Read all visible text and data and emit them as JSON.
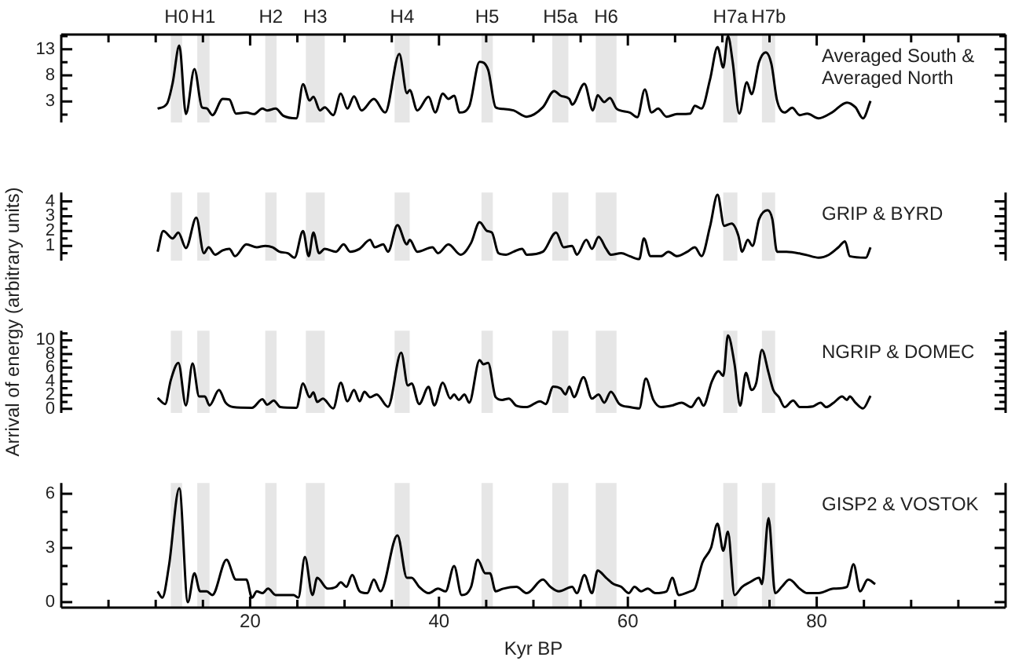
{
  "chart_data": [
    {
      "type": "line",
      "ylabel": "Arrival of energy (arbitrary units)",
      "xlim": [
        0,
        100
      ],
      "xticks": [
        {
          "value": 5,
          "label": null
        },
        {
          "value": 10,
          "label": null
        },
        {
          "value": 15,
          "label": null
        },
        20,
        {
          "value": 25,
          "label": null
        },
        {
          "value": 30,
          "label": null
        },
        {
          "value": 35,
          "label": null
        },
        40,
        {
          "value": 45,
          "label": null
        },
        {
          "value": 50,
          "label": null
        },
        {
          "value": 55,
          "label": null
        },
        60,
        {
          "value": 65,
          "label": null
        },
        {
          "value": 70,
          "label": null
        },
        {
          "value": 75,
          "label": null
        },
        80,
        {
          "value": 85,
          "label": null
        },
        {
          "value": 90,
          "label": null
        },
        {
          "value": 95,
          "label": null
        }
      ],
      "ylim": [
        -1,
        15.8
      ],
      "yticks": [
        {
          "value": 0.5,
          "label": null
        },
        3,
        {
          "value": 5.5,
          "label": null
        },
        8,
        {
          "value": 10.5,
          "label": null
        },
        13,
        {
          "value": 15.5,
          "label": null
        }
      ],
      "tick_labels": "y",
      "bands": [
        {
          "axis": "x",
          "from": 11.6,
          "to": 12.8,
          "label": "H0",
          "color": "#e6e6e6"
        },
        {
          "axis": "x",
          "from": 14.4,
          "to": 15.7,
          "label": "H1",
          "color": "#e6e6e6"
        },
        {
          "axis": "x",
          "from": 21.6,
          "to": 22.8,
          "label": "H2",
          "color": "#e6e6e6"
        },
        {
          "axis": "x",
          "from": 25.9,
          "to": 27.9,
          "label": "H3",
          "color": "#e6e6e6"
        },
        {
          "axis": "x",
          "from": 35.3,
          "to": 36.9,
          "label": "H4",
          "color": "#e6e6e6"
        },
        {
          "axis": "x",
          "from": 44.5,
          "to": 45.7,
          "label": "H5",
          "color": "#e6e6e6"
        },
        {
          "axis": "x",
          "from": 52,
          "to": 53.7,
          "label": "H5a",
          "color": "#e6e6e6"
        },
        {
          "axis": "x",
          "from": 56.6,
          "to": 58.8,
          "label": "H6",
          "color": "#e6e6e6"
        },
        {
          "axis": "x",
          "from": 70.1,
          "to": 71.6,
          "label": "H7a",
          "color": "#e6e6e6"
        },
        {
          "axis": "x",
          "from": 74.2,
          "to": 75.6,
          "label": "H7b",
          "color": "#e6e6e6"
        }
      ],
      "series": [
        {
          "name": "Averaged South & Averaged North",
          "color": "#000000",
          "x": [
            10.2,
            11.2,
            11.8,
            12.5,
            13.2,
            14.1,
            14.9,
            15.4,
            16,
            17.1,
            17.8,
            18.5,
            19.6,
            20.4,
            21.3,
            21.8,
            22.7,
            23.5,
            24.9,
            25.6,
            26.3,
            26.7,
            27.4,
            27.9,
            28.8,
            29.6,
            30.3,
            31,
            31.8,
            33.1,
            34.3,
            35.8,
            36.6,
            36.9,
            37.7,
            38.9,
            39.6,
            40.4,
            41,
            41.6,
            42.2,
            43.2,
            44.3,
            45.2,
            46,
            46.8,
            47.9,
            49.3,
            51,
            52.2,
            52.9,
            53.8,
            54.1,
            55.4,
            56.3,
            56.8,
            57.5,
            58.1,
            58.8,
            60.2,
            61,
            61.8,
            62.5,
            63.2,
            64.1,
            65.2,
            66.6,
            67.1,
            67.8,
            68.7,
            69.5,
            70.1,
            70.6,
            71.1,
            71.8,
            72.6,
            73.1,
            73.9,
            74.6,
            75.2,
            75.8,
            76.6,
            77.4,
            78.2,
            79,
            80.2,
            81.6,
            83.2,
            84.1,
            84.9,
            85.7
          ],
          "values": [
            1.65,
            2.6,
            6.6,
            13.7,
            0.6,
            9.2,
            1.9,
            1.7,
            0.4,
            3.5,
            3.4,
            0.7,
            0.9,
            0.6,
            1.65,
            1.3,
            1.65,
            0.3,
            -0.2,
            6.3,
            3.2,
            3.9,
            1.3,
            1.9,
            0.4,
            4.5,
            1.65,
            4.0,
            1.3,
            3.5,
            0.9,
            12.1,
            4.6,
            5.2,
            1.3,
            3.9,
            0.9,
            4.5,
            3.5,
            4.1,
            0.9,
            2.1,
            10.6,
            9.1,
            1.9,
            1.6,
            1.3,
            0.1,
            1.9,
            5.0,
            4.1,
            3.5,
            2.4,
            6.4,
            1.3,
            4.2,
            2.9,
            3.7,
            1.65,
            0.9,
            0,
            5.3,
            0.9,
            1.65,
            0.1,
            0.6,
            0.7,
            2.2,
            1.65,
            7.2,
            13.4,
            9.5,
            15.5,
            10.6,
            0.7,
            6.7,
            4.4,
            10.6,
            12.4,
            10.2,
            3.2,
            0.9,
            1.8,
            0.4,
            0.7,
            -0.2,
            0.9,
            2.8,
            1.9,
            -0.2,
            3.1
          ]
        }
      ]
    },
    {
      "type": "line",
      "xlim": [
        0,
        100
      ],
      "ylim": [
        0,
        4.6
      ],
      "yticks": [
        {
          "value": 0.5,
          "label": null
        },
        1,
        {
          "value": 1.5,
          "label": null
        },
        2,
        {
          "value": 2.5,
          "label": null
        },
        3,
        {
          "value": 3.5,
          "label": null
        },
        4
      ],
      "tick_labels": "y",
      "bands": [
        {
          "axis": "x",
          "from": 11.6,
          "to": 12.8,
          "color": "#e6e6e6"
        },
        {
          "axis": "x",
          "from": 14.4,
          "to": 15.7,
          "color": "#e6e6e6"
        },
        {
          "axis": "x",
          "from": 21.6,
          "to": 22.8,
          "color": "#e6e6e6"
        },
        {
          "axis": "x",
          "from": 25.9,
          "to": 27.9,
          "color": "#e6e6e6"
        },
        {
          "axis": "x",
          "from": 35.3,
          "to": 36.9,
          "color": "#e6e6e6"
        },
        {
          "axis": "x",
          "from": 44.5,
          "to": 45.7,
          "color": "#e6e6e6"
        },
        {
          "axis": "x",
          "from": 52,
          "to": 53.7,
          "color": "#e6e6e6"
        },
        {
          "axis": "x",
          "from": 56.6,
          "to": 58.8,
          "color": "#e6e6e6"
        },
        {
          "axis": "x",
          "from": 70.1,
          "to": 71.6,
          "color": "#e6e6e6"
        },
        {
          "axis": "x",
          "from": 74.2,
          "to": 75.6,
          "color": "#e6e6e6"
        }
      ],
      "series": [
        {
          "name": "GRIP & BYRD",
          "color": "#000000",
          "x": [
            10.2,
            10.8,
            11.8,
            12.4,
            13.2,
            14.3,
            15.1,
            15.6,
            16.3,
            17.1,
            17.8,
            18.4,
            19.6,
            20.7,
            21.6,
            22.4,
            23.1,
            24,
            24.7,
            25.6,
            26.2,
            26.7,
            27.3,
            27.9,
            29.1,
            29.9,
            30.6,
            31.6,
            32.7,
            33.2,
            34.1,
            34.6,
            35.6,
            36.6,
            36.9,
            37.7,
            39.3,
            39.9,
            41,
            42.3,
            43.4,
            44.3,
            45.1,
            45.6,
            46.3,
            47.1,
            47.9,
            48.8,
            49.3,
            51,
            52.4,
            53.2,
            54.1,
            54.6,
            55.6,
            56.2,
            56.9,
            57.7,
            58.2,
            59.3,
            60.2,
            61.2,
            61.7,
            62.4,
            63.5,
            64.3,
            65.2,
            66.3,
            67.1,
            67.8,
            68.7,
            69.5,
            70.2,
            71,
            71.7,
            72.1,
            72.7,
            73.2,
            73.9,
            74.8,
            75.3,
            75.8,
            76.8,
            78.8,
            80.2,
            81.3,
            82.3,
            83,
            83.5,
            85.2,
            85.7
          ],
          "values": [
            0.6,
            2.0,
            1.5,
            1.9,
            0.85,
            2.9,
            0.5,
            0.9,
            0.4,
            0.7,
            0.8,
            0.3,
            1.1,
            0.9,
            1.0,
            0.9,
            0.6,
            0.5,
            0.2,
            2.0,
            0.3,
            1.9,
            0.5,
            0.8,
            0.6,
            1.1,
            0.6,
            0.8,
            1.4,
            0.9,
            1.1,
            0.6,
            2.4,
            1.1,
            1.4,
            0.6,
            0.9,
            0.5,
            1.1,
            0.4,
            1.2,
            2.6,
            2.0,
            1.9,
            0.5,
            0.4,
            0.6,
            0.8,
            0.4,
            0.6,
            1.9,
            0.9,
            1.0,
            0.4,
            1.4,
            0.8,
            1.6,
            0.8,
            0.4,
            0.5,
            0.3,
            0.1,
            1.5,
            0.3,
            0.3,
            0.6,
            0.3,
            0.6,
            0.9,
            0.3,
            2.3,
            4.45,
            2.35,
            2.5,
            1.7,
            0.6,
            1.4,
            1.0,
            2.8,
            3.4,
            2.8,
            0.6,
            0.6,
            0.4,
            0.2,
            0.4,
            0.9,
            1.3,
            0.3,
            0.2,
            0.9
          ]
        }
      ]
    },
    {
      "type": "line",
      "xlim": [
        0,
        100
      ],
      "ylim": [
        -0.6,
        11.4
      ],
      "yticks": [
        0,
        {
          "value": 1,
          "label": null
        },
        2,
        {
          "value": 3,
          "label": null
        },
        4,
        {
          "value": 5,
          "label": null
        },
        6,
        {
          "value": 7,
          "label": null
        },
        8,
        {
          "value": 9,
          "label": null
        },
        10,
        {
          "value": 11,
          "label": null
        }
      ],
      "tick_labels": "y",
      "bands": [
        {
          "axis": "x",
          "from": 11.6,
          "to": 12.8,
          "color": "#e6e6e6"
        },
        {
          "axis": "x",
          "from": 14.4,
          "to": 15.7,
          "color": "#e6e6e6"
        },
        {
          "axis": "x",
          "from": 21.6,
          "to": 22.8,
          "color": "#e6e6e6"
        },
        {
          "axis": "x",
          "from": 25.9,
          "to": 27.9,
          "color": "#e6e6e6"
        },
        {
          "axis": "x",
          "from": 35.3,
          "to": 36.9,
          "color": "#e6e6e6"
        },
        {
          "axis": "x",
          "from": 44.5,
          "to": 45.7,
          "color": "#e6e6e6"
        },
        {
          "axis": "x",
          "from": 52,
          "to": 53.7,
          "color": "#e6e6e6"
        },
        {
          "axis": "x",
          "from": 56.6,
          "to": 58.8,
          "color": "#e6e6e6"
        },
        {
          "axis": "x",
          "from": 70.1,
          "to": 71.6,
          "color": "#e6e6e6"
        },
        {
          "axis": "x",
          "from": 74.2,
          "to": 75.6,
          "color": "#e6e6e6"
        }
      ],
      "series": [
        {
          "name": "NGRIP & DOMEC",
          "color": "#000000",
          "x": [
            10.2,
            11,
            11.6,
            12.4,
            13.2,
            13.9,
            14.6,
            15.2,
            15.7,
            16.7,
            17.4,
            18.2,
            20.2,
            21.3,
            21.8,
            22.5,
            23.2,
            24.9,
            25.6,
            26.3,
            26.7,
            27.1,
            27.7,
            28.8,
            29.6,
            30.3,
            31,
            31.6,
            32.1,
            32.7,
            33.4,
            34.6,
            36,
            36.7,
            37.1,
            37.9,
            38.9,
            39.5,
            40.4,
            41.2,
            41.6,
            42.1,
            42.7,
            43.2,
            44.3,
            44.7,
            45.2,
            46,
            46.7,
            47.4,
            48.2,
            49.3,
            50.7,
            51.3,
            52.1,
            52.9,
            53.4,
            53.8,
            54.3,
            55.3,
            56.2,
            56.9,
            57.5,
            58.2,
            59.1,
            60.2,
            61.2,
            61.9,
            62.7,
            63.5,
            64.6,
            65.7,
            66.7,
            67.5,
            68,
            68.9,
            69.6,
            70.1,
            70.6,
            71.3,
            71.9,
            72.5,
            73.1,
            73.6,
            74.2,
            74.9,
            75.4,
            76,
            76.6,
            77.5,
            78.2,
            79.6,
            80.4,
            81,
            81.8,
            82.7,
            83.2,
            83.5,
            84.1,
            84.9,
            85.7
          ],
          "values": [
            1.6,
            0.7,
            4.2,
            6.7,
            0.5,
            6.6,
            1.8,
            1.8,
            0.5,
            2.75,
            0.9,
            0.25,
            0.15,
            1.4,
            0.6,
            1.2,
            0.25,
            0.15,
            3.7,
            1.7,
            2.4,
            1.0,
            1.5,
            0.05,
            3.8,
            1.1,
            2.75,
            1.1,
            2.5,
            1.7,
            2.1,
            0.3,
            8.2,
            3.4,
            3.7,
            0.7,
            3.2,
            0.5,
            3.8,
            1.5,
            2.1,
            1.3,
            2.1,
            0.9,
            7.1,
            6.5,
            6.7,
            1.7,
            1.3,
            1.5,
            0.45,
            0.25,
            1.1,
            0.7,
            3.25,
            2.95,
            2.1,
            3.25,
            1.7,
            4.6,
            1.5,
            2.1,
            0.9,
            2.5,
            0.7,
            0.25,
            0.05,
            4.4,
            1.3,
            0.25,
            0.45,
            0.9,
            0.25,
            1.6,
            0.45,
            4.0,
            5.5,
            4.8,
            10.7,
            6.5,
            0.45,
            5.25,
            2.75,
            3.8,
            8.6,
            5.25,
            2.75,
            1.7,
            0.25,
            1.2,
            0.25,
            0.35,
            0.9,
            0.25,
            0.9,
            1.8,
            1.3,
            1.8,
            0.9,
            0.05,
            1.9
          ]
        }
      ]
    },
    {
      "type": "line",
      "xlabel": "Kyr BP",
      "xlim": [
        0,
        100
      ],
      "xticks": [
        {
          "value": 5,
          "label": null
        },
        {
          "value": 10,
          "label": null
        },
        {
          "value": 15,
          "label": null
        },
        20,
        {
          "value": 25,
          "label": null
        },
        {
          "value": 30,
          "label": null
        },
        {
          "value": 35,
          "label": null
        },
        40,
        {
          "value": 45,
          "label": null
        },
        {
          "value": 50,
          "label": null
        },
        {
          "value": 55,
          "label": null
        },
        60,
        {
          "value": 65,
          "label": null
        },
        {
          "value": 70,
          "label": null
        },
        {
          "value": 75,
          "label": null
        },
        80,
        {
          "value": 85,
          "label": null
        },
        {
          "value": 90,
          "label": null
        },
        {
          "value": 95,
          "label": null
        }
      ],
      "ylim": [
        -0.3,
        6.6
      ],
      "yticks": [
        0,
        {
          "value": 1,
          "label": null
        },
        {
          "value": 2,
          "label": null
        },
        3,
        {
          "value": 4,
          "label": null
        },
        {
          "value": 5,
          "label": null
        },
        6
      ],
      "bands": [
        {
          "axis": "x",
          "from": 11.6,
          "to": 12.8,
          "color": "#e6e6e6"
        },
        {
          "axis": "x",
          "from": 14.4,
          "to": 15.7,
          "color": "#e6e6e6"
        },
        {
          "axis": "x",
          "from": 21.6,
          "to": 22.8,
          "color": "#e6e6e6"
        },
        {
          "axis": "x",
          "from": 25.9,
          "to": 27.9,
          "color": "#e6e6e6"
        },
        {
          "axis": "x",
          "from": 35.3,
          "to": 36.9,
          "color": "#e6e6e6"
        },
        {
          "axis": "x",
          "from": 44.5,
          "to": 45.7,
          "color": "#e6e6e6"
        },
        {
          "axis": "x",
          "from": 52,
          "to": 53.7,
          "color": "#e6e6e6"
        },
        {
          "axis": "x",
          "from": 56.6,
          "to": 58.8,
          "color": "#e6e6e6"
        },
        {
          "axis": "x",
          "from": 70.1,
          "to": 71.6,
          "color": "#e6e6e6"
        },
        {
          "axis": "x",
          "from": 74.2,
          "to": 75.6,
          "color": "#e6e6e6"
        }
      ],
      "series": [
        {
          "name": "GISP2 & VOSTOK",
          "color": "#000000",
          "x": [
            10.2,
            10.7,
            11.4,
            12.5,
            13.4,
            14.1,
            14.7,
            15.4,
            16,
            17.5,
            18.5,
            19.6,
            20.2,
            20.7,
            21.3,
            21.9,
            22.7,
            24.6,
            25.1,
            25.8,
            26.6,
            27.1,
            28.2,
            29.1,
            29.6,
            30.2,
            30.8,
            31.6,
            32.4,
            33.1,
            33.8,
            35.6,
            36.6,
            37.1,
            37.9,
            38.9,
            39.9,
            40.7,
            41.6,
            42.4,
            43.4,
            44.1,
            44.9,
            45.4,
            46,
            46.8,
            48.2,
            49.3,
            51,
            51.8,
            52.7,
            54.1,
            54.6,
            55.4,
            56.2,
            56.8,
            57.7,
            58.5,
            59.3,
            60.1,
            60.7,
            61.4,
            62.1,
            62.9,
            64.1,
            64.7,
            65.4,
            66.6,
            67.1,
            67.9,
            68.8,
            69.5,
            70.1,
            70.6,
            71.3,
            72.1,
            72.9,
            73.9,
            74.2,
            74.9,
            75.6,
            76.3,
            77.1,
            78.2,
            79,
            80.2,
            81.8,
            83.2,
            83.9,
            84.6,
            85.4,
            86.2
          ],
          "values": [
            0.6,
            0.25,
            2.0,
            6.3,
            0,
            1.6,
            0.6,
            0.6,
            0.4,
            2.35,
            1.25,
            1.25,
            0.25,
            0.6,
            0.5,
            0.75,
            0.4,
            0.4,
            0.25,
            2.5,
            0.4,
            1.35,
            0.75,
            0.85,
            1.1,
            0.85,
            1.5,
            0.6,
            0.5,
            1.25,
            0.6,
            3.7,
            1.35,
            1.35,
            0.85,
            0.5,
            0.75,
            0.6,
            2.0,
            0.4,
            0.85,
            2.35,
            1.6,
            1.6,
            0.6,
            0.75,
            0.85,
            0.5,
            1.25,
            0.85,
            0.6,
            0.85,
            0.5,
            1.5,
            0.5,
            1.75,
            1.35,
            1.0,
            0.85,
            0.5,
            0.85,
            0.6,
            0.75,
            0.5,
            0.6,
            1.35,
            0.4,
            0.6,
            0.75,
            2.2,
            3.0,
            4.35,
            2.85,
            3.9,
            0.4,
            0.85,
            1.1,
            1.35,
            1.0,
            4.65,
            0.5,
            0.85,
            1.25,
            0.75,
            0.5,
            0.5,
            0.75,
            0.85,
            2.1,
            0.6,
            1.25,
            1.0
          ]
        }
      ]
    }
  ]
}
